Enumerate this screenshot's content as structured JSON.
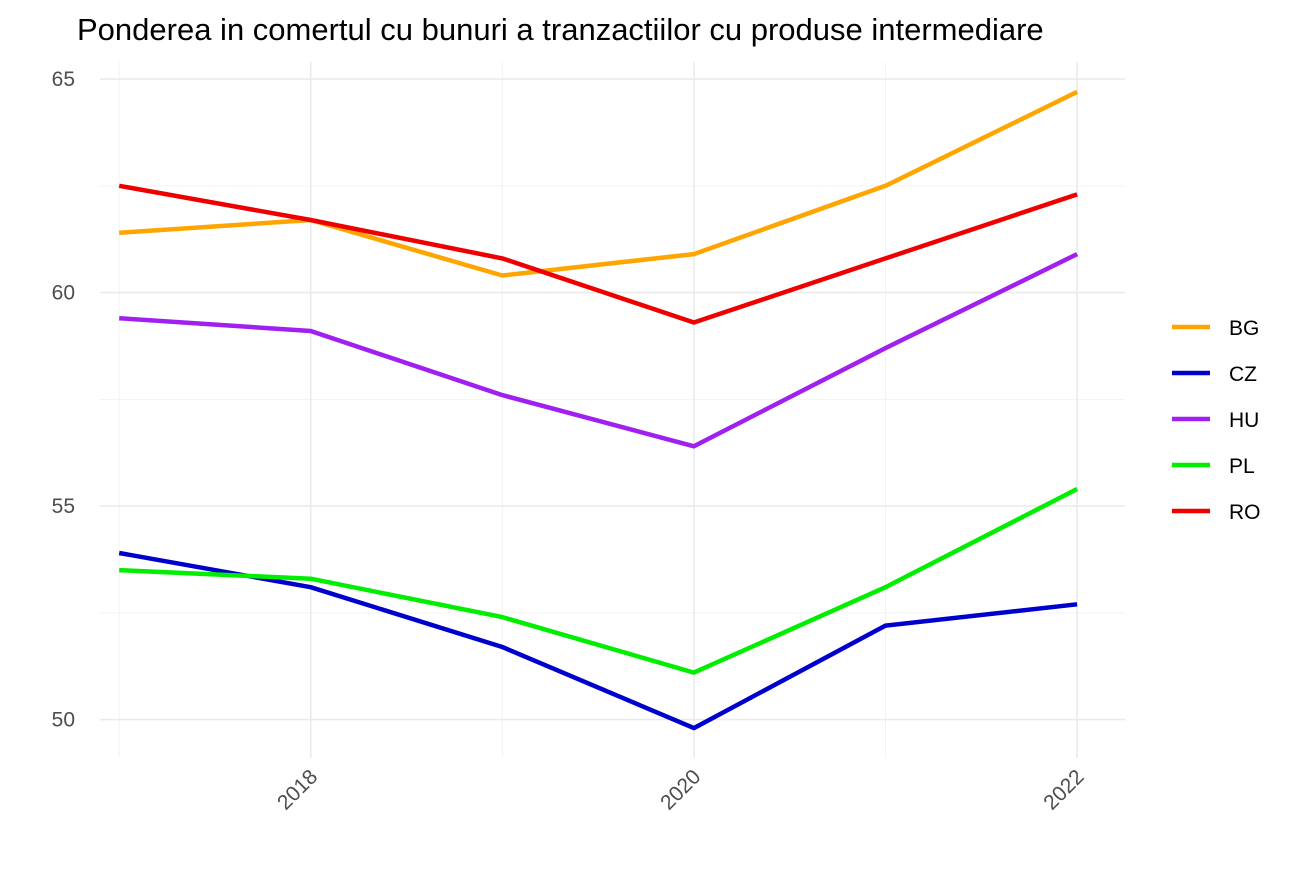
{
  "chart_data": {
    "type": "line",
    "title": "Ponderea in comertul cu bunuri a tranzactiilor cu produse intermediare",
    "xlabel": "",
    "ylabel": "",
    "x": [
      2017,
      2018,
      2019,
      2020,
      2021,
      2022
    ],
    "x_ticks": [
      "2018",
      "2020",
      "2022"
    ],
    "y_ticks": [
      "50",
      "55",
      "60",
      "65"
    ],
    "xlim": [
      2016.9,
      2022.25
    ],
    "ylim": [
      49.1,
      65.4
    ],
    "grid": true,
    "legend_position": "right",
    "series": [
      {
        "name": "BG",
        "color": "#FFA500",
        "values": [
          61.4,
          61.7,
          60.4,
          60.9,
          62.5,
          64.7
        ]
      },
      {
        "name": "CZ",
        "color": "#0000CD",
        "values": [
          53.9,
          53.1,
          51.7,
          49.8,
          52.2,
          52.7
        ]
      },
      {
        "name": "HU",
        "color": "#A020F0",
        "values": [
          59.4,
          59.1,
          57.6,
          56.4,
          58.7,
          60.9
        ]
      },
      {
        "name": "PL",
        "color": "#00EE00",
        "values": [
          53.5,
          53.3,
          52.4,
          51.1,
          53.1,
          55.4
        ]
      },
      {
        "name": "RO",
        "color": "#EE0000",
        "values": [
          62.5,
          61.7,
          60.8,
          59.3,
          60.8,
          62.3
        ]
      }
    ]
  }
}
